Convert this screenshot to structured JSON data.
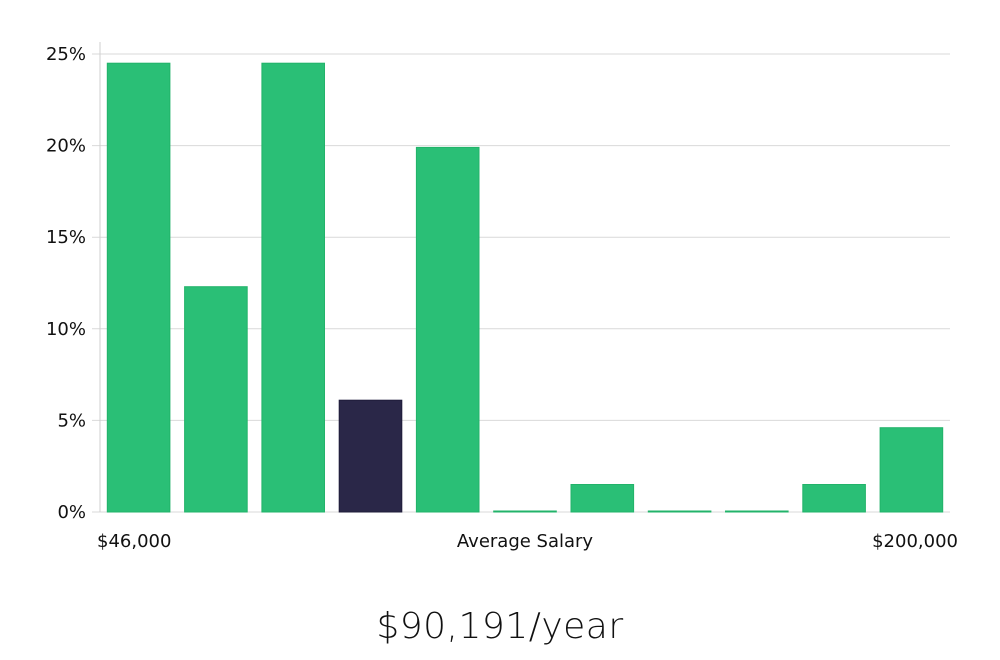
{
  "chart_data": {
    "type": "bar",
    "values": [
      24.5,
      12.3,
      24.5,
      6.1,
      19.9,
      0,
      1.5,
      0,
      0,
      1.5,
      4.6
    ],
    "highlight_index": 3,
    "colors": {
      "bar": "#2abf76",
      "highlight": "#2a2748",
      "grid": "#d9d9d9",
      "axis": "#cfcfcf"
    },
    "ylim": [
      0,
      25
    ],
    "yticks": [
      0,
      5,
      10,
      15,
      20,
      25
    ],
    "ytick_labels": [
      "0%",
      "5%",
      "10%",
      "15%",
      "20%",
      "25%"
    ],
    "x_range_labels": {
      "min": "$46,000",
      "max": "$200,000"
    },
    "xlabel": "Average Salary",
    "grid": true
  },
  "salary_text": "$90,191/year"
}
